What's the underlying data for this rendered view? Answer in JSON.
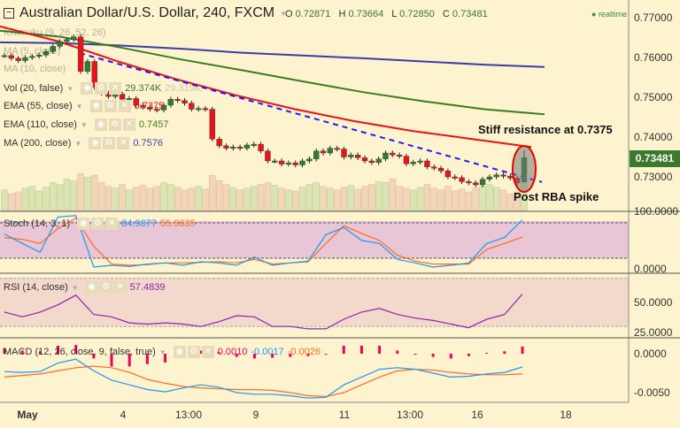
{
  "header": {
    "symbol": "Australian Dollar/U.S. Dollar, 240, FXCM",
    "o_label": "O",
    "o": "0.72871",
    "h_label": "H",
    "h": "0.73664",
    "l_label": "L",
    "l": "0.72850",
    "c_label": "C",
    "c": "0.73481",
    "status": "realtime"
  },
  "legends": {
    "ichimoku": {
      "label": "Ichimoku (9, 26, 52, 26)"
    },
    "ma5": {
      "label": "MA (5, close)"
    },
    "ma10": {
      "label": "MA (10, close)"
    },
    "vol": {
      "label": "Vol (20, false)",
      "value": "29.374K",
      "value2": "29.319K"
    },
    "ema55": {
      "label": "EMA (55, close)",
      "value": "0.7375"
    },
    "ema110": {
      "label": "EMA (110, close)",
      "value": "0.7457"
    },
    "ma200": {
      "label": "MA (200, close)",
      "value": "0.7576"
    },
    "stoch": {
      "label": "Stoch (14, 3, 1)",
      "k": "84.9877",
      "d": "55.9635"
    },
    "rsi": {
      "label": "RSI (14, close)",
      "value": "57.4839"
    },
    "macd": {
      "label": "MACD (12, 26, close, 9, false, true)",
      "hist": "0.0010",
      "macd": "-0.0017",
      "signal": "-0.0026"
    }
  },
  "annotations": {
    "resistance": "Stiff resistance at 0.7375",
    "spike": "Post RBA spike"
  },
  "price_axis": {
    "ticks": [
      "0.77000",
      "0.76000",
      "0.75000",
      "0.74000",
      "0.73000"
    ],
    "last": "0.73481"
  },
  "stoch_axis": [
    "100.0000",
    "0.0000"
  ],
  "rsi_axis": [
    "50.0000",
    "25.0000"
  ],
  "macd_axis": [
    "0.0000",
    "-0.0050"
  ],
  "time_axis": [
    "May",
    "4",
    "13:00",
    "9",
    "11",
    "13:00",
    "16",
    "18"
  ],
  "colors": {
    "up": "#2e7d32",
    "down": "#e8141b",
    "ema55": "#f01010",
    "ema110": "#3a7d1e",
    "ma200": "#3c3ca8",
    "trend": "#1a1aff",
    "stoch_k": "#2196f3",
    "stoch_d": "#ff6d1f",
    "rsi": "#8e24aa",
    "macd": "#2196f3",
    "signal": "#ff6d1f",
    "hist": "#f50057",
    "last": "#3a7a2a"
  },
  "chart_data": {
    "type": "candlestick",
    "price_range": [
      0.7255,
      0.7745
    ],
    "closes": [
      0.7605,
      0.7598,
      0.7592,
      0.76,
      0.7603,
      0.7606,
      0.7615,
      0.7628,
      0.764,
      0.7645,
      0.7652,
      0.7565,
      0.759,
      0.7525,
      0.751,
      0.7502,
      0.7508,
      0.7495,
      0.7497,
      0.748,
      0.7475,
      0.747,
      0.7468,
      0.748,
      0.7495,
      0.7492,
      0.7485,
      0.747,
      0.7472,
      0.747,
      0.7395,
      0.7378,
      0.7372,
      0.7375,
      0.7372,
      0.738,
      0.7382,
      0.7365,
      0.734,
      0.734,
      0.7332,
      0.7335,
      0.733,
      0.734,
      0.7345,
      0.7365,
      0.736,
      0.7372,
      0.737,
      0.735,
      0.7355,
      0.7348,
      0.734,
      0.7336,
      0.7345,
      0.736,
      0.7355,
      0.7352,
      0.7333,
      0.7337,
      0.734,
      0.7325,
      0.7322,
      0.7315,
      0.73,
      0.7298,
      0.7288,
      0.7285,
      0.728,
      0.7294,
      0.73,
      0.7305,
      0.7302,
      0.7297,
      0.7285,
      0.73481
    ],
    "last_bar": {
      "open": 0.72871,
      "high": 0.73664,
      "low": 0.7285,
      "close": 0.73481
    },
    "volume_k": [
      22,
      18,
      20,
      24,
      26,
      21,
      25,
      30,
      28,
      34,
      32,
      40,
      36,
      38,
      30,
      26,
      24,
      28,
      22,
      25,
      27,
      24,
      26,
      30,
      28,
      25,
      22,
      24,
      26,
      23,
      38,
      32,
      28,
      25,
      22,
      24,
      26,
      28,
      30,
      27,
      24,
      22,
      21,
      25,
      28,
      30,
      26,
      24,
      22,
      25,
      27,
      23,
      26,
      28,
      31,
      30,
      34,
      26,
      24,
      22,
      25,
      28,
      24,
      22,
      26,
      21,
      23,
      20,
      24,
      26,
      28,
      25,
      22,
      18,
      20,
      29.374
    ],
    "ema55": [
      0.7678,
      0.764,
      0.759,
      0.7545,
      0.7505,
      0.747,
      0.744,
      0.7415,
      0.7395,
      0.7375
    ],
    "ema110": [
      0.7667,
      0.7652,
      0.7625,
      0.7595,
      0.7568,
      0.754,
      0.7513,
      0.749,
      0.747,
      0.7457
    ],
    "ma200": [
      0.7638,
      0.7636,
      0.763,
      0.7622,
      0.7612,
      0.7605,
      0.7598,
      0.759,
      0.7582,
      0.7576
    ],
    "trendline": {
      "from": 0.7611,
      "to": 0.7287
    },
    "stoch": {
      "bands": [
        80,
        20
      ],
      "k": [
        61,
        45,
        30,
        90,
        92,
        5,
        8,
        6,
        10,
        12,
        8,
        14,
        12,
        8,
        22,
        8,
        12,
        15,
        60,
        72,
        50,
        45,
        18,
        12,
        5,
        8,
        12,
        45,
        55,
        85
      ],
      "d": [
        55,
        52,
        45,
        70,
        88,
        40,
        10,
        8,
        9,
        12,
        12,
        13,
        14,
        12,
        18,
        10,
        12,
        14,
        45,
        75,
        62,
        50,
        25,
        15,
        10,
        10,
        10,
        35,
        45,
        56
      ]
    },
    "rsi": {
      "bands": [
        70,
        30
      ],
      "values": [
        42,
        38,
        42,
        48,
        56,
        40,
        38,
        33,
        32,
        33,
        32,
        30,
        34,
        39,
        38,
        30,
        30,
        28,
        28,
        36,
        42,
        45,
        40,
        37,
        35,
        32,
        29,
        36,
        40,
        57
      ]
    },
    "macd": {
      "macd": [
        -0.0023,
        -0.0024,
        -0.0023,
        -0.0012,
        -0.0007,
        -0.0022,
        -0.0034,
        -0.004,
        -0.0046,
        -0.0049,
        -0.0044,
        -0.004,
        -0.0043,
        -0.005,
        -0.0052,
        -0.0052,
        -0.0054,
        -0.0057,
        -0.0056,
        -0.004,
        -0.003,
        -0.002,
        -0.0018,
        -0.002,
        -0.0025,
        -0.003,
        -0.0029,
        -0.0026,
        -0.0024,
        -0.0017
      ],
      "signal": [
        -0.003,
        -0.0028,
        -0.0026,
        -0.0022,
        -0.0018,
        -0.0016,
        -0.0018,
        -0.0024,
        -0.0033,
        -0.0038,
        -0.0042,
        -0.0044,
        -0.0045,
        -0.0046,
        -0.0046,
        -0.0047,
        -0.005,
        -0.0054,
        -0.0055,
        -0.005,
        -0.004,
        -0.003,
        -0.0022,
        -0.002,
        -0.0021,
        -0.0024,
        -0.0026,
        -0.0027,
        -0.0027,
        -0.0026
      ]
    }
  }
}
